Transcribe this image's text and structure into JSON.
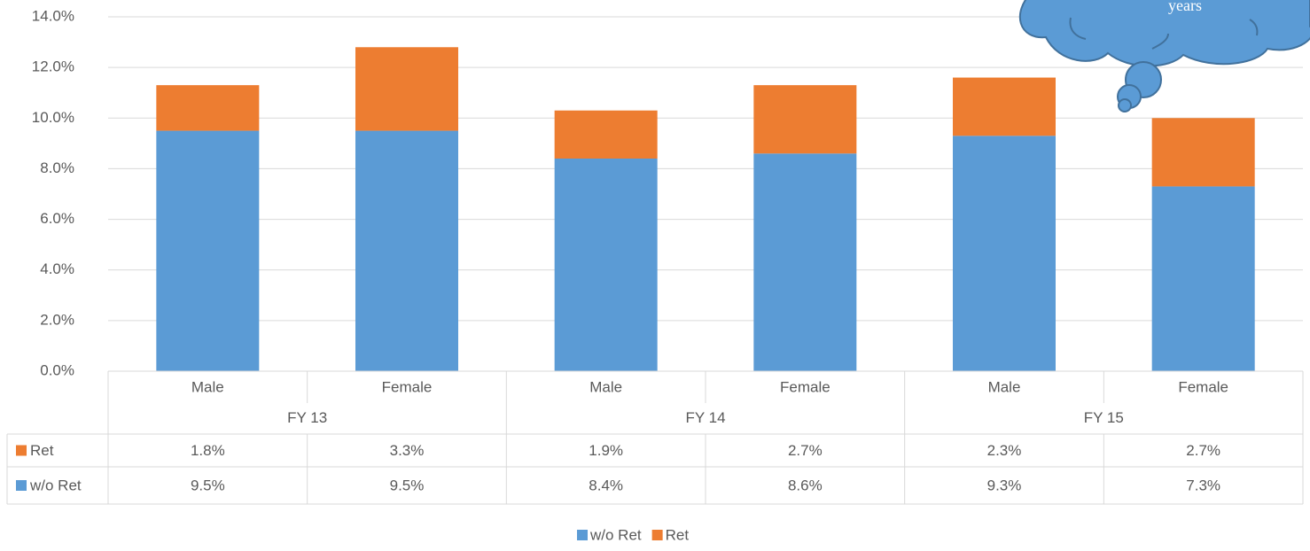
{
  "chart_data": {
    "type": "stacked_bar",
    "annotation": "years",
    "categories": [
      "Male",
      "Female",
      "Male",
      "Female",
      "Male",
      "Female"
    ],
    "groups": [
      "FY 13",
      "FY 14",
      "FY 15"
    ],
    "series": [
      {
        "name": "w/o Ret",
        "color": "#5b9bd5",
        "values": [
          9.5,
          9.5,
          8.4,
          8.6,
          9.3,
          7.3
        ],
        "value_labels": [
          "9.5%",
          "9.5%",
          "8.4%",
          "8.6%",
          "9.3%",
          "7.3%"
        ]
      },
      {
        "name": "Ret",
        "color": "#ed7d31",
        "values": [
          1.8,
          3.3,
          1.9,
          2.7,
          2.3,
          2.7
        ],
        "value_labels": [
          "1.8%",
          "3.3%",
          "1.9%",
          "2.7%",
          "2.3%",
          "2.7%"
        ]
      }
    ],
    "ylim": [
      0,
      14
    ],
    "yticks": [
      {
        "value": 0,
        "label": "0.0%"
      },
      {
        "value": 2,
        "label": "2.0%"
      },
      {
        "value": 4,
        "label": "4.0%"
      },
      {
        "value": 6,
        "label": "6.0%"
      },
      {
        "value": 8,
        "label": "8.0%"
      },
      {
        "value": 10,
        "label": "10.0%"
      },
      {
        "value": 12,
        "label": "12.0%"
      },
      {
        "value": 14,
        "label": "14.0%"
      }
    ],
    "grid": true
  }
}
